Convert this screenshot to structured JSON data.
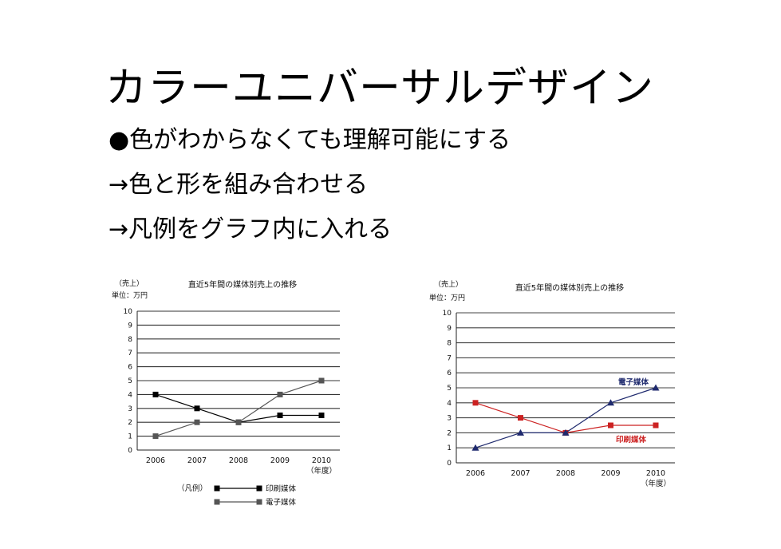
{
  "slide": {
    "title": "カラーユニバーサルデザイン",
    "bullets": [
      "●色がわからなくても理解可能にする",
      "→色と形を組み合わせる",
      "→凡例をグラフ内に入れる"
    ]
  },
  "chart_data": [
    {
      "type": "line",
      "title": "直近5年間の媒体別売上の推移",
      "ylabel": "（売上）",
      "yunit": "単位：万円",
      "xlabel": "（年度）",
      "x": [
        "2006",
        "2007",
        "2008",
        "2009",
        "2010"
      ],
      "ylim": [
        0,
        10
      ],
      "yticks": [
        "0",
        "1",
        "2",
        "3",
        "4",
        "5",
        "6",
        "7",
        "8",
        "9",
        "10"
      ],
      "grid": true,
      "legend_title": "（凡例）",
      "legend_placement": "bottom",
      "series": [
        {
          "name": "印刷媒体",
          "values": [
            4,
            3,
            2,
            2.5,
            2.5
          ],
          "color": "#000000",
          "marker": "square"
        },
        {
          "name": "電子媒体",
          "values": [
            1,
            2,
            2,
            4,
            5
          ],
          "color": "#555555",
          "marker": "square"
        }
      ]
    },
    {
      "type": "line",
      "title": "直近5年間の媒体別売上の推移",
      "ylabel": "（売上）",
      "yunit": "単位：万円",
      "xlabel": "（年度）",
      "x": [
        "2006",
        "2007",
        "2008",
        "2009",
        "2010"
      ],
      "ylim": [
        0,
        10
      ],
      "yticks": [
        "0",
        "1",
        "2",
        "3",
        "4",
        "5",
        "6",
        "7",
        "8",
        "9",
        "10"
      ],
      "grid": true,
      "legend_placement": "inline",
      "series": [
        {
          "name": "印刷媒体",
          "values": [
            4,
            3,
            2,
            2.5,
            2.5
          ],
          "color": "#cc2222",
          "marker": "square"
        },
        {
          "name": "電子媒体",
          "values": [
            1,
            2,
            2,
            4,
            5
          ],
          "color": "#1f2a6e",
          "marker": "triangle"
        }
      ]
    }
  ]
}
